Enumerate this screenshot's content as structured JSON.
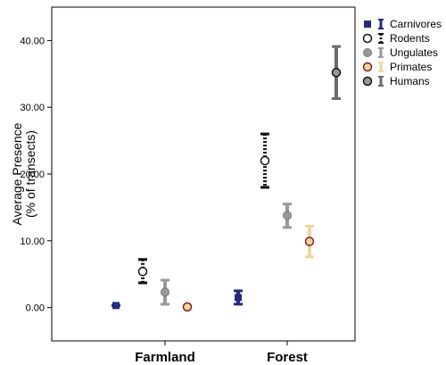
{
  "chart_data": {
    "type": "scatter",
    "title": "",
    "ylabel_lines": [
      "Average Presence",
      "(% of transects)"
    ],
    "xlabel": "",
    "categories": [
      "Farmland",
      "Forest"
    ],
    "ylim": [
      -5,
      45
    ],
    "yticks": [
      0,
      10,
      20,
      30,
      40
    ],
    "ytick_labels": [
      "0.00",
      "10.00",
      "20.00",
      "30.00",
      "40.00"
    ],
    "grid": false,
    "legend_position": "top-right",
    "series": [
      {
        "name": "Carnivores",
        "color": "#232b7a",
        "marker": "square-filled",
        "line_style": "solid",
        "values": [
          0.3,
          1.5
        ],
        "lower": [
          0.3,
          0.5
        ],
        "upper": [
          0.3,
          2.5
        ]
      },
      {
        "name": "Rodents",
        "color": "#111111",
        "marker": "circle-open",
        "line_style": "dotted",
        "values": [
          5.4,
          22.0
        ],
        "lower": [
          3.7,
          18.0
        ],
        "upper": [
          7.2,
          26.0
        ]
      },
      {
        "name": "Ungulates",
        "color": "#999999",
        "marker": "circle-filled",
        "line_style": "solid",
        "values": [
          2.3,
          13.8
        ],
        "lower": [
          0.5,
          12.0
        ],
        "upper": [
          4.1,
          15.5
        ]
      },
      {
        "name": "Primates",
        "color": "#e8d9a0",
        "marker": "circle-filled-red-edge",
        "line_style": "solid",
        "values": [
          0.1,
          9.9
        ],
        "lower": [
          -0.1,
          7.6
        ],
        "upper": [
          0.3,
          12.2
        ]
      },
      {
        "name": "Humans",
        "color": "#6b6b6b",
        "marker": "circle-dark",
        "line_style": "solid",
        "values": [
          null,
          35.2
        ],
        "lower": [
          null,
          31.3
        ],
        "upper": [
          null,
          39.1
        ]
      }
    ]
  }
}
